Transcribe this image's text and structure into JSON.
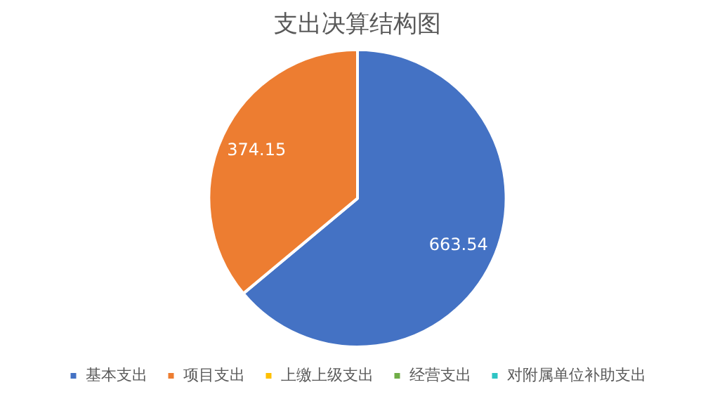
{
  "chart_data": {
    "type": "pie",
    "title": "支出决算结构图",
    "categories": [
      "基本支出",
      "项目支出",
      "上缴上级支出",
      "经营支出",
      "对附属单位补助支出"
    ],
    "values": [
      663.54,
      374.15,
      0,
      0,
      0
    ],
    "colors": [
      "#4472c4",
      "#ed7d31",
      "#ffc000",
      "#70ad47",
      "#2ec4c4"
    ],
    "value_labels": [
      "663.54",
      "374.15",
      null,
      null,
      null
    ],
    "legend": "bottom"
  }
}
